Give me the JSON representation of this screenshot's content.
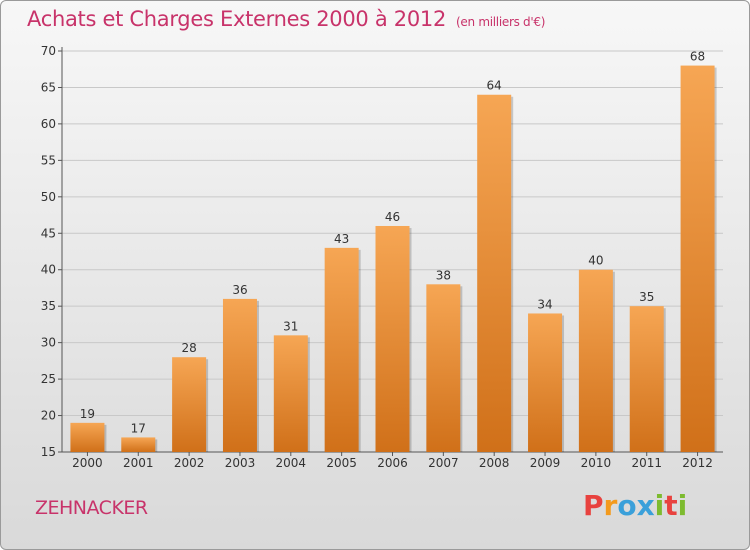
{
  "title": "Achats et Charges Externes 2000 à 2012",
  "unit_label": "(en milliers d'€)",
  "commune": "ZEHNACKER",
  "brand": {
    "letters": [
      "P",
      "r",
      "o",
      "x",
      "i",
      "t",
      "i"
    ],
    "colors": [
      "#e8423f",
      "#f39a1d",
      "#3aa0da",
      "#3aa0da",
      "#7dbb2f",
      "#e8423f",
      "#7dbb2f"
    ]
  },
  "colors": {
    "bar_light": "#f6a654",
    "bar_dark": "#d07019",
    "title": "#c8336a"
  },
  "chart_data": {
    "type": "bar",
    "categories": [
      "2000",
      "2001",
      "2002",
      "2003",
      "2004",
      "2005",
      "2006",
      "2007",
      "2008",
      "2009",
      "2010",
      "2011",
      "2012"
    ],
    "values": [
      19,
      17,
      28,
      36,
      31,
      43,
      46,
      38,
      64,
      34,
      40,
      35,
      68
    ],
    "ylim": [
      15,
      70
    ],
    "yticks": [
      15,
      20,
      25,
      30,
      35,
      40,
      45,
      50,
      55,
      60,
      65,
      70
    ],
    "grid": true,
    "legend": "none"
  }
}
